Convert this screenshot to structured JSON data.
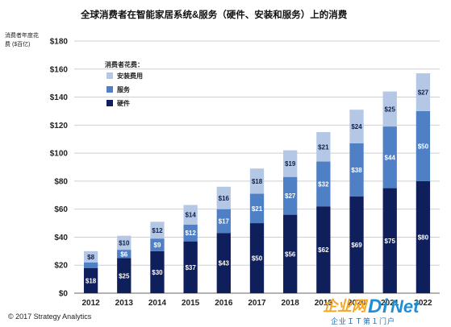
{
  "chart_data": {
    "type": "bar",
    "stacked": true,
    "title": "全球消费者在智能家居系统&服务（硬件、安装和服务）上的消费",
    "ylabel_lines": [
      "消费者年度花",
      "费 ($百亿)"
    ],
    "ylim": [
      0,
      180
    ],
    "yticks": [
      0,
      20,
      40,
      60,
      80,
      100,
      120,
      140,
      160,
      180
    ],
    "ytick_labels": [
      "$0",
      "$20",
      "$40",
      "$60",
      "$80",
      "$100",
      "$120",
      "$140",
      "$160",
      "$180"
    ],
    "categories": [
      "2012",
      "2013",
      "2014",
      "2015",
      "2016",
      "2017",
      "2018",
      "2019",
      "2020",
      "2021",
      "2022"
    ],
    "series": [
      {
        "name": "硬件",
        "color": "#0f1f5c",
        "values": [
          18,
          25,
          30,
          37,
          43,
          50,
          56,
          62,
          69,
          75,
          80
        ]
      },
      {
        "name": "服务",
        "color": "#4f7fc4",
        "values": [
          4,
          6,
          9,
          12,
          17,
          21,
          27,
          32,
          38,
          44,
          50
        ]
      },
      {
        "name": "安装费用",
        "color": "#b4c8e6",
        "values": [
          8,
          10,
          12,
          14,
          16,
          18,
          19,
          21,
          24,
          25,
          27
        ]
      }
    ],
    "data_labels": [
      [
        "$18",
        "$25",
        "$30",
        "$37",
        "$43",
        "$50",
        "$56",
        "$62",
        "$69",
        "$75",
        "$80"
      ],
      [
        "",
        "$6",
        "$9",
        "$12",
        "$17",
        "$21",
        "$27",
        "$32",
        "$38",
        "$44",
        "$50"
      ],
      [
        "$8",
        "$10",
        "$12",
        "$14",
        "$16",
        "$18",
        "$19",
        "$21",
        "$24",
        "$25",
        "$27"
      ]
    ],
    "legend": {
      "title": "消费者花费：",
      "placement": "top-left",
      "order": [
        2,
        1,
        0
      ]
    },
    "grid": true
  },
  "footer": {
    "copyright": "© 2017 Strategy Analytics"
  },
  "watermark": {
    "cn": "企业网",
    "d": "D",
    "i": "i",
    "net": "Net",
    "sub": "企业ＩＴ第１门户"
  }
}
